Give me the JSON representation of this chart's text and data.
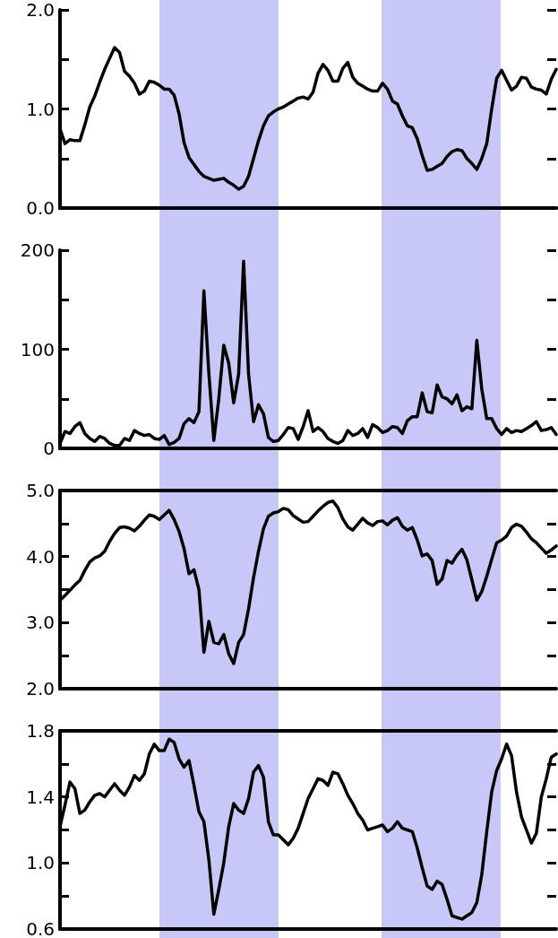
{
  "chart_data": [
    {
      "type": "line",
      "categories": [
        null,
        null,
        null,
        null,
        null,
        null,
        null,
        null,
        null,
        null,
        null,
        null,
        null,
        null,
        null,
        null,
        null,
        null,
        null,
        null,
        null,
        null,
        null,
        null,
        null,
        null,
        null,
        null,
        null,
        null,
        null,
        null,
        null,
        null,
        null,
        null,
        null,
        null,
        null,
        null,
        null,
        null,
        null,
        null,
        null,
        null,
        null,
        null,
        null,
        null,
        null,
        null,
        null,
        null,
        null,
        null,
        null,
        null,
        null,
        null,
        null,
        null,
        null,
        null,
        null,
        null,
        null,
        null,
        null,
        null,
        null,
        null,
        null,
        null,
        null,
        null,
        null,
        null,
        null,
        null,
        null,
        null,
        null,
        null,
        null,
        null,
        null,
        null,
        null,
        null,
        null,
        null,
        null,
        null,
        null,
        null,
        null,
        null,
        null,
        null,
        null
      ],
      "ylim": [
        0,
        2
      ],
      "yticks": [
        {
          "value": 0,
          "label": "0.0"
        },
        {
          "value": 0.5,
          "label": null
        },
        {
          "value": 1,
          "label": "1.0"
        },
        {
          "value": 1.5,
          "label": null
        },
        {
          "value": 2,
          "label": "2.0"
        }
      ],
      "tick_labels": "y",
      "series": [
        {
          "color": "#000000",
          "values": [
            0.8,
            0.65,
            0.69,
            0.68,
            0.68,
            0.84,
            1.02,
            1.13,
            1.27,
            1.4,
            1.51,
            1.62,
            1.57,
            1.38,
            1.33,
            1.26,
            1.15,
            1.18,
            1.28,
            1.27,
            1.24,
            1.2,
            1.2,
            1.14,
            0.95,
            0.66,
            0.51,
            0.44,
            0.37,
            0.32,
            0.3,
            0.28,
            0.29,
            0.3,
            0.26,
            0.23,
            0.19,
            0.22,
            0.32,
            0.5,
            0.68,
            0.83,
            0.93,
            0.97,
            1.0,
            1.02,
            1.05,
            1.08,
            1.11,
            1.12,
            1.1,
            1.17,
            1.36,
            1.45,
            1.39,
            1.28,
            1.28,
            1.41,
            1.47,
            1.32,
            1.26,
            1.23,
            1.2,
            1.18,
            1.18,
            1.26,
            1.2,
            1.08,
            1.05,
            0.93,
            0.83,
            0.81,
            0.7,
            0.53,
            0.38,
            0.39,
            0.42,
            0.45,
            0.52,
            0.57,
            0.59,
            0.58,
            0.5,
            0.45,
            0.39,
            0.5,
            0.65,
            1.0,
            1.31,
            1.39,
            1.29,
            1.19,
            1.23,
            1.32,
            1.31,
            1.22,
            1.2,
            1.19,
            1.15,
            1.3,
            1.4
          ]
        }
      ]
    },
    {
      "type": "line",
      "categories": [
        null,
        null,
        null,
        null,
        null,
        null,
        null,
        null,
        null,
        null,
        null,
        null,
        null,
        null,
        null,
        null,
        null,
        null,
        null,
        null,
        null,
        null,
        null,
        null,
        null,
        null,
        null,
        null,
        null,
        null,
        null,
        null,
        null,
        null,
        null,
        null,
        null,
        null,
        null,
        null,
        null,
        null,
        null,
        null,
        null,
        null,
        null,
        null,
        null,
        null,
        null,
        null,
        null,
        null,
        null,
        null,
        null,
        null,
        null,
        null,
        null,
        null,
        null,
        null,
        null,
        null,
        null,
        null,
        null,
        null,
        null,
        null,
        null,
        null,
        null,
        null,
        null,
        null,
        null,
        null,
        null,
        null,
        null,
        null,
        null,
        null,
        null,
        null,
        null,
        null,
        null,
        null,
        null,
        null,
        null,
        null,
        null,
        null,
        null,
        null,
        null
      ],
      "ylim": [
        0,
        200
      ],
      "yticks": [
        0,
        {
          "value": 50,
          "label": null
        },
        100,
        {
          "value": 150,
          "label": null
        },
        200
      ],
      "tick_labels": "y",
      "series": [
        {
          "color": "#000000",
          "values": [
            5,
            17,
            15,
            22,
            26,
            15,
            10,
            7,
            12,
            10,
            5,
            3,
            3,
            10,
            8,
            18,
            15,
            13,
            14,
            10,
            9,
            13,
            4,
            6,
            10,
            25,
            30,
            26,
            37,
            159,
            76,
            8,
            50,
            104,
            86,
            46,
            75,
            189,
            75,
            27,
            44,
            35,
            11,
            7,
            8,
            14,
            21,
            20,
            9,
            22,
            38,
            17,
            21,
            17,
            10,
            7,
            5,
            8,
            18,
            13,
            15,
            20,
            11,
            24,
            21,
            16,
            18,
            22,
            21,
            15,
            28,
            32,
            32,
            56,
            37,
            36,
            64,
            52,
            50,
            45,
            54,
            38,
            42,
            40,
            109,
            60,
            30,
            30,
            20,
            14,
            20,
            16,
            18,
            17,
            20,
            23,
            27,
            18,
            19,
            21,
            14
          ]
        }
      ]
    },
    {
      "type": "line",
      "categories": [
        null,
        null,
        null,
        null,
        null,
        null,
        null,
        null,
        null,
        null,
        null,
        null,
        null,
        null,
        null,
        null,
        null,
        null,
        null,
        null,
        null,
        null,
        null,
        null,
        null,
        null,
        null,
        null,
        null,
        null,
        null,
        null,
        null,
        null,
        null,
        null,
        null,
        null,
        null,
        null,
        null,
        null,
        null,
        null,
        null,
        null,
        null,
        null,
        null,
        null,
        null,
        null,
        null,
        null,
        null,
        null,
        null,
        null,
        null,
        null,
        null,
        null,
        null,
        null,
        null,
        null,
        null,
        null,
        null,
        null,
        null,
        null,
        null,
        null,
        null,
        null,
        null,
        null,
        null,
        null,
        null,
        null,
        null,
        null,
        null,
        null,
        null,
        null,
        null,
        null,
        null,
        null,
        null,
        null,
        null,
        null,
        null,
        null,
        null,
        null,
        null
      ],
      "ylim": [
        2,
        5
      ],
      "yticks": [
        {
          "value": 2,
          "label": "2.0"
        },
        {
          "value": 2.5,
          "label": null
        },
        {
          "value": 3,
          "label": "3.0"
        },
        {
          "value": 3.5,
          "label": null
        },
        {
          "value": 4,
          "label": "4.0"
        },
        {
          "value": 4.5,
          "label": null
        },
        {
          "value": 5,
          "label": "5.0"
        }
      ],
      "tick_labels": "y",
      "series": [
        {
          "color": "#000000",
          "values": [
            3.34,
            3.41,
            3.49,
            3.57,
            3.64,
            3.79,
            3.92,
            3.98,
            4.01,
            4.08,
            4.23,
            4.35,
            4.44,
            4.45,
            4.43,
            4.39,
            4.46,
            4.55,
            4.63,
            4.61,
            4.56,
            4.63,
            4.7,
            4.56,
            4.38,
            4.12,
            3.74,
            3.8,
            3.5,
            2.55,
            3.02,
            2.7,
            2.68,
            2.82,
            2.53,
            2.38,
            2.7,
            2.82,
            3.21,
            3.68,
            4.08,
            4.42,
            4.61,
            4.66,
            4.68,
            4.73,
            4.71,
            4.62,
            4.57,
            4.52,
            4.53,
            4.61,
            4.69,
            4.76,
            4.82,
            4.84,
            4.74,
            4.57,
            4.45,
            4.4,
            4.49,
            4.58,
            4.51,
            4.47,
            4.53,
            4.54,
            4.48,
            4.55,
            4.59,
            4.46,
            4.4,
            4.44,
            4.25,
            4.01,
            4.04,
            3.94,
            3.58,
            3.66,
            3.94,
            3.9,
            4.02,
            4.11,
            3.95,
            3.65,
            3.34,
            3.47,
            3.7,
            3.96,
            4.21,
            4.25,
            4.31,
            4.44,
            4.49,
            4.46,
            4.37,
            4.27,
            4.21,
            4.13,
            4.05,
            4.1,
            4.16
          ]
        }
      ]
    },
    {
      "type": "line",
      "categories": [
        null,
        null,
        null,
        null,
        null,
        null,
        null,
        null,
        null,
        null,
        null,
        null,
        null,
        null,
        null,
        null,
        null,
        null,
        null,
        null,
        null,
        null,
        null,
        null,
        null,
        null,
        null,
        null,
        null,
        null,
        null,
        null,
        null,
        null,
        null,
        null,
        null,
        null,
        null,
        null,
        null,
        null,
        null,
        null,
        null,
        null,
        null,
        null,
        null,
        null,
        null,
        null,
        null,
        null,
        null,
        null,
        null,
        null,
        null,
        null,
        null,
        null,
        null,
        null,
        null,
        null,
        null,
        null,
        null,
        null,
        null,
        null,
        null,
        null,
        null,
        null,
        null,
        null,
        null,
        null,
        null,
        null,
        null,
        null,
        null,
        null,
        null,
        null,
        null,
        null,
        null,
        null,
        null,
        null,
        null,
        null,
        null,
        null,
        null,
        null,
        null
      ],
      "ylim": [
        0.6,
        1.8
      ],
      "yticks": [
        0.6,
        {
          "value": 0.8,
          "label": null
        },
        {
          "value": 1,
          "label": "1.0"
        },
        {
          "value": 1.2,
          "label": null
        },
        1.4,
        {
          "value": 1.6,
          "label": null
        },
        1.8
      ],
      "tick_labels": "y",
      "series": [
        {
          "color": "#000000",
          "values": [
            1.22,
            1.35,
            1.49,
            1.45,
            1.3,
            1.32,
            1.37,
            1.41,
            1.42,
            1.4,
            1.44,
            1.48,
            1.44,
            1.41,
            1.46,
            1.53,
            1.5,
            1.54,
            1.66,
            1.72,
            1.68,
            1.68,
            1.75,
            1.73,
            1.63,
            1.58,
            1.62,
            1.47,
            1.31,
            1.25,
            1.02,
            0.69,
            0.84,
            1.0,
            1.22,
            1.36,
            1.32,
            1.3,
            1.39,
            1.55,
            1.59,
            1.52,
            1.25,
            1.17,
            1.17,
            1.14,
            1.11,
            1.15,
            1.21,
            1.3,
            1.39,
            1.45,
            1.51,
            1.5,
            1.47,
            1.55,
            1.54,
            1.48,
            1.41,
            1.36,
            1.3,
            1.26,
            1.2,
            1.21,
            1.22,
            1.23,
            1.19,
            1.21,
            1.25,
            1.21,
            1.2,
            1.19,
            1.09,
            0.97,
            0.86,
            0.84,
            0.89,
            0.87,
            0.78,
            0.68,
            0.67,
            0.66,
            0.68,
            0.7,
            0.76,
            0.93,
            1.19,
            1.43,
            1.56,
            1.63,
            1.72,
            1.65,
            1.43,
            1.28,
            1.2,
            1.12,
            1.18,
            1.4,
            1.51,
            1.64,
            1.66
          ]
        }
      ]
    }
  ]
}
